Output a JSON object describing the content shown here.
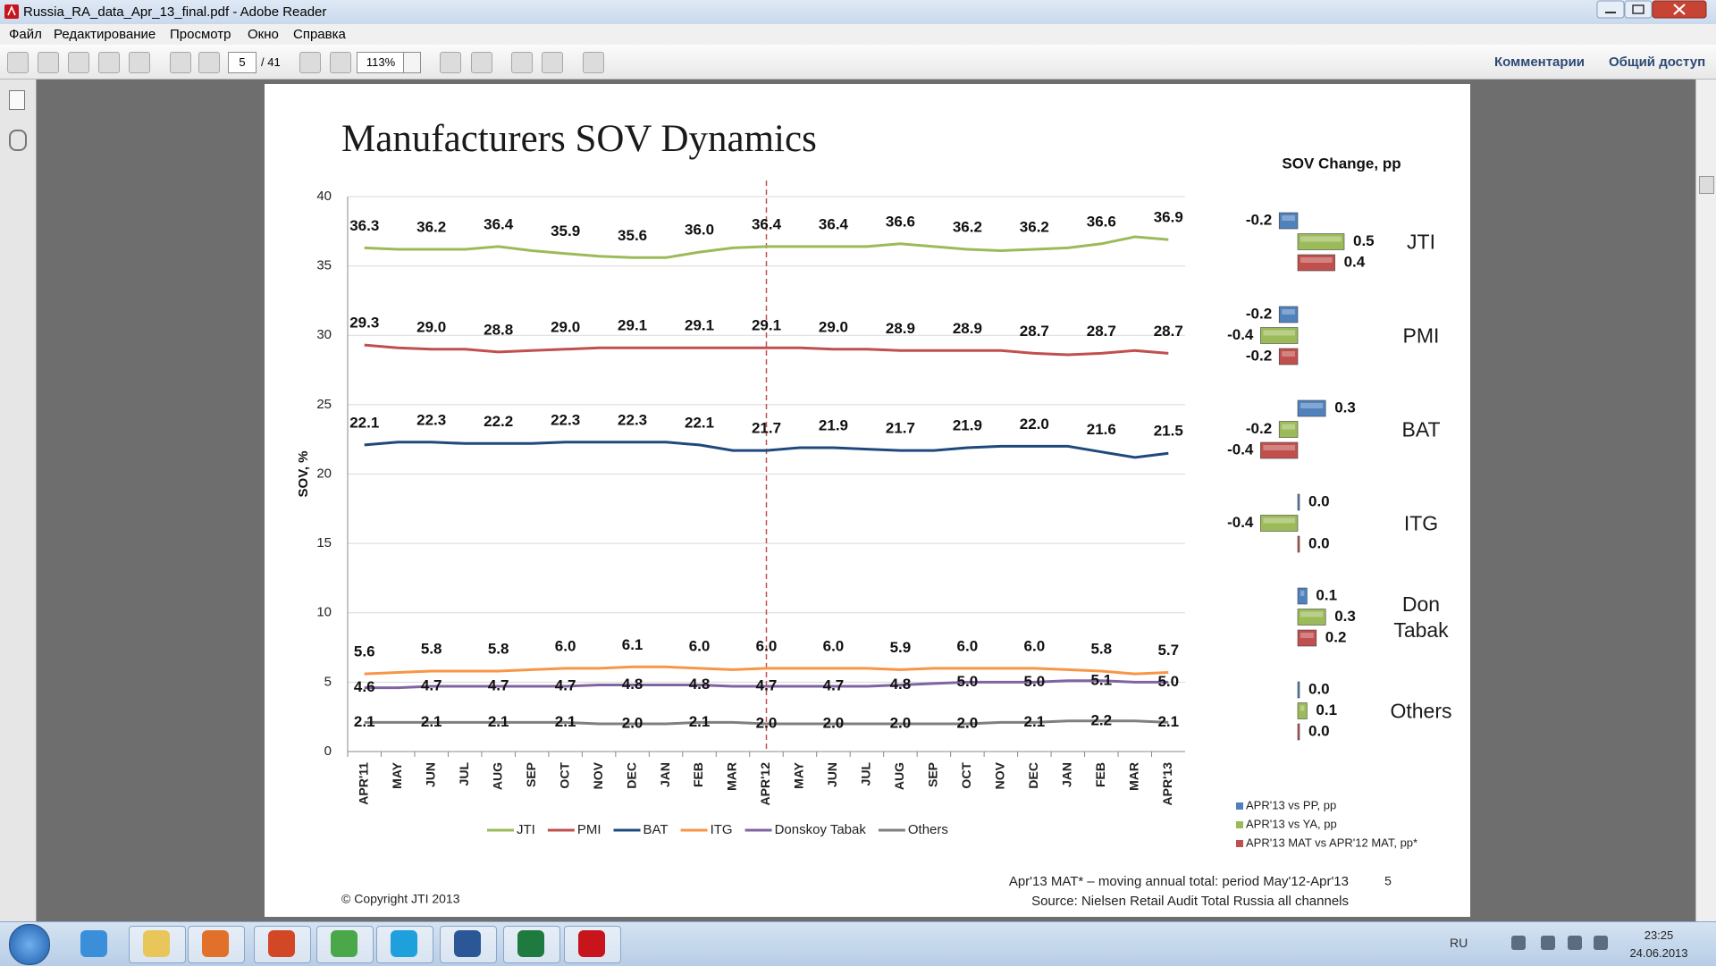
{
  "window": {
    "title": "Russia_RA_data_Apr_13_final.pdf - Adobe Reader"
  },
  "menu": [
    "Файл",
    "Редактирование",
    "Просмотр",
    "Окно",
    "Справка"
  ],
  "toolbar": {
    "page": "5",
    "page_total": "/ 41",
    "zoom": "113%",
    "buttons": [
      "Комментарии",
      "Общий доступ"
    ]
  },
  "document": {
    "title": "Manufacturers SOV Dynamics",
    "copyright": "© Copyright JTI 2013",
    "footnote": "Apr'13 MAT* – moving annual total: period May'12-Apr'13",
    "source": "Source: Nielsen Retail Audit Total Russia all channels",
    "page_number": "5"
  },
  "chart_data": [
    {
      "type": "line",
      "ylabel": "SOV, %",
      "ylim": [
        0,
        40
      ],
      "yticks": [
        0,
        5,
        10,
        15,
        20,
        25,
        30,
        35,
        40
      ],
      "grid": true,
      "legend": "bottom",
      "vline": {
        "category": "APR'12",
        "color": "#c0504d",
        "dashed": true
      },
      "categories": [
        "APR'11",
        "MAY",
        "JUN",
        "JUL",
        "AUG",
        "SEP",
        "OCT",
        "NOV",
        "DEC",
        "JAN",
        "FEB",
        "MAR",
        "APR'12",
        "MAY",
        "JUN",
        "JUL",
        "AUG",
        "SEP",
        "OCT",
        "NOV",
        "DEC",
        "JAN",
        "FEB",
        "MAR",
        "APR'13"
      ],
      "series": [
        {
          "name": "JTI",
          "color": "#9bbb59",
          "values": [
            36.3,
            36.2,
            36.2,
            36.2,
            36.4,
            36.1,
            35.9,
            35.7,
            35.6,
            35.6,
            36.0,
            36.3,
            36.4,
            36.4,
            36.4,
            36.4,
            36.6,
            36.4,
            36.2,
            36.1,
            36.2,
            36.3,
            36.6,
            37.1,
            36.9
          ],
          "value_labels": [
            "36.3",
            null,
            "36.2",
            null,
            "36.4",
            null,
            "35.9",
            null,
            "35.6",
            null,
            "36.0",
            null,
            "36.4",
            null,
            "36.4",
            null,
            "36.6",
            null,
            "36.2",
            null,
            "36.2",
            null,
            "36.6",
            null,
            "36.9"
          ]
        },
        {
          "name": "PMI",
          "color": "#c0504d",
          "values": [
            29.3,
            29.1,
            29.0,
            29.0,
            28.8,
            28.9,
            29.0,
            29.1,
            29.1,
            29.1,
            29.1,
            29.1,
            29.1,
            29.1,
            29.0,
            29.0,
            28.9,
            28.9,
            28.9,
            28.9,
            28.7,
            28.6,
            28.7,
            28.9,
            28.7
          ],
          "value_labels": [
            "29.3",
            null,
            "29.0",
            null,
            "28.8",
            null,
            "29.0",
            null,
            "29.1",
            null,
            "29.1",
            null,
            "29.1",
            null,
            "29.0",
            null,
            "28.9",
            null,
            "28.9",
            null,
            "28.7",
            null,
            "28.7",
            null,
            "28.7"
          ]
        },
        {
          "name": "BAT",
          "color": "#1f497d",
          "values": [
            22.1,
            22.3,
            22.3,
            22.2,
            22.2,
            22.2,
            22.3,
            22.3,
            22.3,
            22.3,
            22.1,
            21.7,
            21.7,
            21.9,
            21.9,
            21.8,
            21.7,
            21.7,
            21.9,
            22.0,
            22.0,
            22.0,
            21.6,
            21.2,
            21.5
          ],
          "value_labels": [
            "22.1",
            null,
            "22.3",
            null,
            "22.2",
            null,
            "22.3",
            null,
            "22.3",
            null,
            "22.1",
            null,
            "21.7",
            null,
            "21.9",
            null,
            "21.7",
            null,
            "21.9",
            null,
            "22.0",
            null,
            "21.6",
            null,
            "21.5"
          ]
        },
        {
          "name": "ITG",
          "color": "#f79646",
          "values": [
            5.6,
            5.7,
            5.8,
            5.8,
            5.8,
            5.9,
            6.0,
            6.0,
            6.1,
            6.1,
            6.0,
            5.9,
            6.0,
            6.0,
            6.0,
            6.0,
            5.9,
            6.0,
            6.0,
            6.0,
            6.0,
            5.9,
            5.8,
            5.6,
            5.7
          ],
          "value_labels": [
            "5.6",
            null,
            "5.8",
            null,
            "5.8",
            null,
            "6.0",
            null,
            "6.1",
            null,
            "6.0",
            null,
            "6.0",
            null,
            "6.0",
            null,
            "5.9",
            null,
            "6.0",
            null,
            "6.0",
            null,
            "5.8",
            null,
            "5.7"
          ]
        },
        {
          "name": "Donskoy Tabak",
          "color": "#8064a2",
          "values": [
            4.6,
            4.6,
            4.7,
            4.7,
            4.7,
            4.7,
            4.7,
            4.8,
            4.8,
            4.8,
            4.8,
            4.7,
            4.7,
            4.7,
            4.7,
            4.7,
            4.8,
            4.9,
            5.0,
            5.0,
            5.0,
            5.1,
            5.1,
            5.0,
            5.0
          ],
          "value_labels": [
            "4.6",
            null,
            "4.7",
            null,
            "4.7",
            null,
            "4.7",
            null,
            "4.8",
            null,
            "4.8",
            null,
            "4.7",
            null,
            "4.7",
            null,
            "4.8",
            null,
            "5.0",
            null,
            "5.0",
            null,
            "5.1",
            null,
            "5.0"
          ]
        },
        {
          "name": "Others",
          "color": "#7f7f7f",
          "values": [
            2.1,
            2.1,
            2.1,
            2.1,
            2.1,
            2.1,
            2.1,
            2.0,
            2.0,
            2.0,
            2.1,
            2.1,
            2.0,
            2.0,
            2.0,
            2.0,
            2.0,
            2.0,
            2.0,
            2.1,
            2.1,
            2.2,
            2.2,
            2.2,
            2.1
          ],
          "value_labels": [
            "2.1",
            null,
            "2.1",
            null,
            "2.1",
            null,
            "2.1",
            null,
            "2.0",
            null,
            "2.1",
            null,
            "2.0",
            null,
            "2.0",
            null,
            "2.0",
            null,
            "2.0",
            null,
            "2.1",
            null,
            "2.2",
            null,
            "2.1"
          ]
        }
      ]
    },
    {
      "type": "hbar",
      "title": "SOV Change, pp",
      "legend": "bottom-left",
      "categories": [
        "JTI",
        "PMI",
        "BAT",
        "ITG",
        "Don Tabak",
        "Others"
      ],
      "series": [
        {
          "name": "APR'13 vs PP, pp",
          "color": "#4f81bd",
          "values": [
            -0.2,
            -0.2,
            0.3,
            0,
            0.1,
            0
          ],
          "value_labels": [
            "-0.2",
            "-0.2",
            "0.3",
            "0.0",
            "0.1",
            "0.0"
          ]
        },
        {
          "name": "APR'13 vs YA, pp",
          "color": "#9bbb59",
          "values": [
            0.5,
            -0.4,
            -0.2,
            -0.4,
            0.3,
            0.1
          ],
          "value_labels": [
            "0.5",
            "-0.4",
            "-0.2",
            "-0.4",
            "0.3",
            "0.1"
          ]
        },
        {
          "name": "APR'13 MAT vs APR'12 MAT, pp*",
          "color": "#c0504d",
          "values": [
            0.4,
            -0.2,
            -0.4,
            0,
            0.2,
            0
          ],
          "value_labels": [
            "0.4",
            "-0.2",
            "-0.4",
            "0.0",
            "0.2",
            "0.0"
          ]
        }
      ]
    }
  ],
  "taskbar": {
    "language": "RU",
    "time": "23:25",
    "date": "24.06.2013"
  }
}
